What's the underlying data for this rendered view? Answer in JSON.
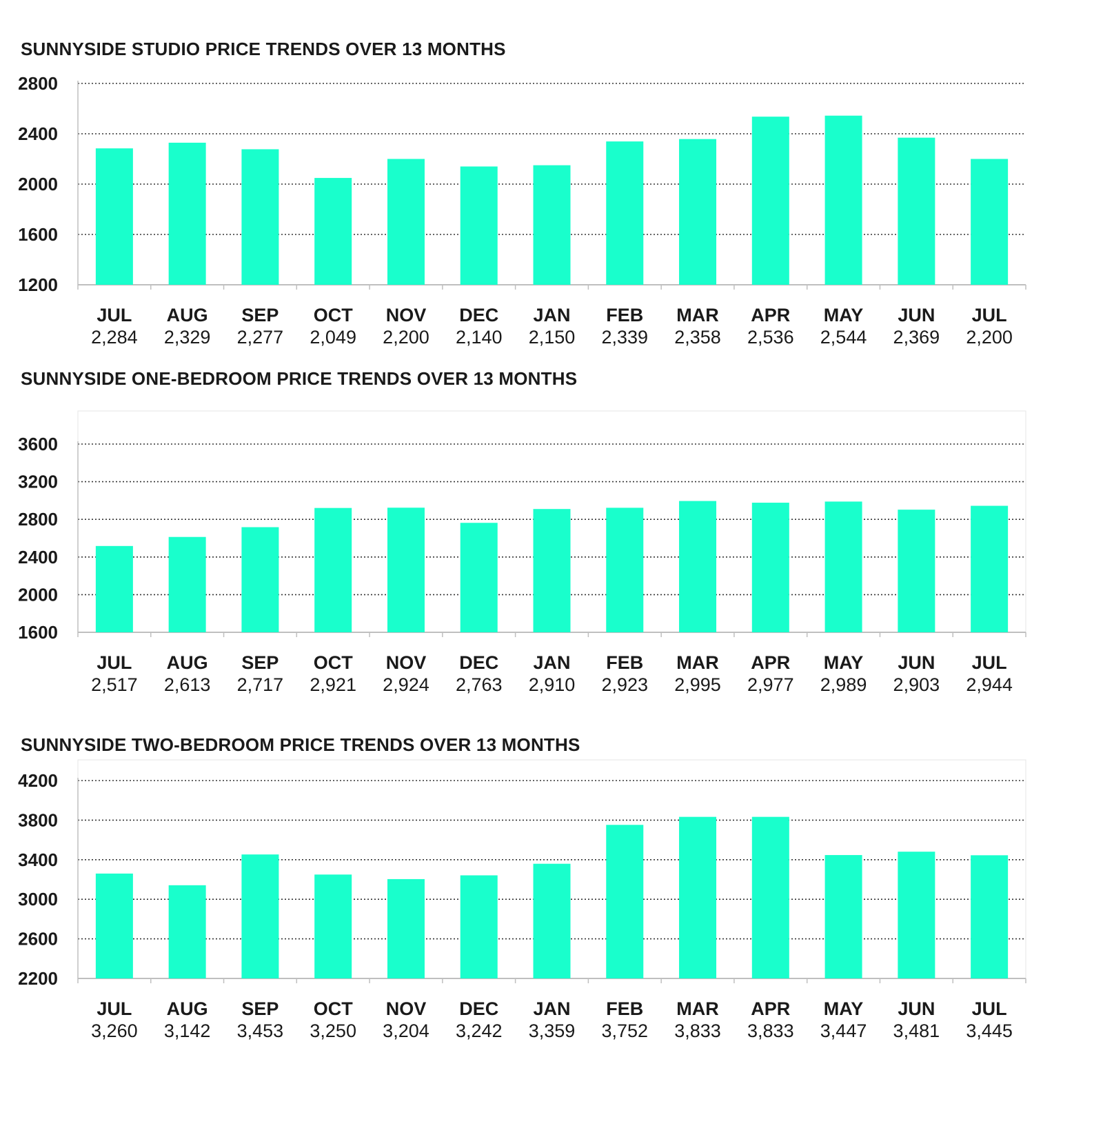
{
  "colors": {
    "bar": "#19ffcc",
    "grid": "#333333",
    "axis": "#bfbfbf",
    "text": "#1a1a1a"
  },
  "chart_data": [
    {
      "type": "bar",
      "title": "SUNNYSIDE STUDIO PRICE TRENDS OVER 13 MONTHS",
      "categories": [
        "JUL",
        "AUG",
        "SEP",
        "OCT",
        "NOV",
        "DEC",
        "JAN",
        "FEB",
        "MAR",
        "APR",
        "MAY",
        "JUN",
        "JUL"
      ],
      "values": [
        2284,
        2329,
        2277,
        2049,
        2200,
        2140,
        2150,
        2339,
        2358,
        2536,
        2544,
        2369,
        2200
      ],
      "value_labels": [
        "2,284",
        "2,329",
        "2,277",
        "2,049",
        "2,200",
        "2,140",
        "2,150",
        "2,339",
        "2,358",
        "2,536",
        "2,544",
        "2,369",
        "2,200"
      ],
      "yticks": [
        1200,
        1600,
        2000,
        2400,
        2800
      ],
      "ylim": [
        1200,
        2800
      ],
      "grid": "dotted horizontal"
    },
    {
      "type": "bar",
      "title": "SUNNYSIDE ONE-BEDROOM PRICE TRENDS OVER 13 MONTHS",
      "categories": [
        "JUL",
        "AUG",
        "SEP",
        "OCT",
        "NOV",
        "DEC",
        "JAN",
        "FEB",
        "MAR",
        "APR",
        "MAY",
        "JUN",
        "JUL"
      ],
      "values": [
        2517,
        2613,
        2717,
        2921,
        2924,
        2763,
        2910,
        2923,
        2995,
        2977,
        2989,
        2903,
        2944
      ],
      "value_labels": [
        "2,517",
        "2,613",
        "2,717",
        "2,921",
        "2,924",
        "2,763",
        "2,910",
        "2,923",
        "2,995",
        "2,977",
        "2,989",
        "2,903",
        "2,944"
      ],
      "yticks": [
        1600,
        2000,
        2400,
        2800,
        3200,
        3600
      ],
      "ylim": [
        1600,
        3600
      ],
      "grid": "dotted horizontal"
    },
    {
      "type": "bar",
      "title": "SUNNYSIDE TWO-BEDROOM PRICE TRENDS OVER 13 MONTHS",
      "categories": [
        "JUL",
        "AUG",
        "SEP",
        "OCT",
        "NOV",
        "DEC",
        "JAN",
        "FEB",
        "MAR",
        "APR",
        "MAY",
        "JUN",
        "JUL"
      ],
      "values": [
        3260,
        3142,
        3453,
        3250,
        3204,
        3242,
        3359,
        3752,
        3833,
        3833,
        3447,
        3481,
        3445
      ],
      "value_labels": [
        "3,260",
        "3,142",
        "3,453",
        "3,250",
        "3,204",
        "3,242",
        "3,359",
        "3,752",
        "3,833",
        "3,833",
        "3,447",
        "3,481",
        "3,445"
      ],
      "yticks": [
        2200,
        2600,
        3000,
        3400,
        3800,
        4200
      ],
      "ylim": [
        2200,
        4200
      ],
      "grid": "dotted horizontal"
    }
  ]
}
